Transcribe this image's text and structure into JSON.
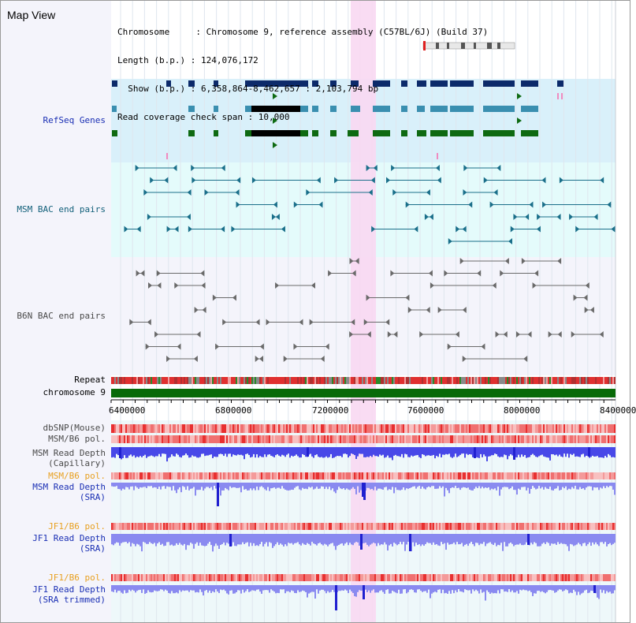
{
  "header": {
    "title": "Map View",
    "info_lines": [
      "Chromosome     : Chromosome 9, reference assembly (C57BL/6J) (Build 37)",
      "Length (b.p.) : 124,076,172",
      "  Show (b.p.) : 6,358,864-8,462,657 : 2,103,794 bp",
      "Read coverage check span : 10,000"
    ]
  },
  "tracks": {
    "refseq": "RefSeq Genes",
    "msm_bac": "MSM BAC end pairs",
    "b6n_bac": "B6N BAC end pairs",
    "repeat": "Repeat",
    "chromosome": "chromosome 9",
    "dbsnp": "dbSNP(Mouse)",
    "msm_b6_pol": "MSM/B6 pol.",
    "msm_depth_cap_1": "MSM Read Depth",
    "msm_depth_cap_2": "(Capillary)",
    "msm_b6_pol_2": "MSM/B6 pol.",
    "msm_depth_sra_1": "MSM Read Depth",
    "msm_depth_sra_2": "(SRA)",
    "jf1_b6_pol": "JF1/B6 pol.",
    "jf1_depth_sra_1": "JF1 Read Depth",
    "jf1_depth_sra_2": "(SRA)",
    "jf1_b6_pol_2": "JF1/B6 pol.",
    "jf1_depth_trim_1": "JF1 Read Depth",
    "jf1_depth_trim_2": "(SRA trimmed)"
  },
  "axis": {
    "ticks": [
      "6400000",
      "6800000",
      "7200000",
      "7600000",
      "8000000",
      "8400000"
    ]
  },
  "colors": {
    "refseq_bg": "#d9f0fa",
    "msm_bg": "#e4fbfb",
    "b6n_bg": "#f4f4fb",
    "highlight": "#f8d8f2",
    "gene_dark": "#0c2a6a",
    "gene_teal": "#3a8fb0",
    "gene_green": "#0e6a12",
    "chromosome": "#086a08",
    "depth_blue": "#4848e8",
    "depth_light": "#8a8af0"
  }
}
